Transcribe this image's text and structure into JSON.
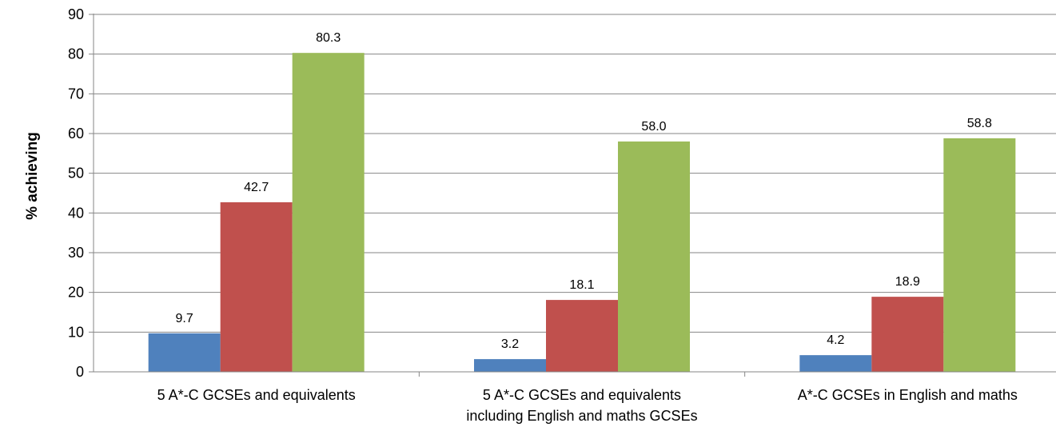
{
  "chart_data": {
    "type": "bar",
    "ylabel": "% achieving",
    "ylim": [
      0,
      90
    ],
    "ytick_step": 10,
    "grid": true,
    "categories": [
      [
        "5 A*-C GCSEs and equivalents"
      ],
      [
        "5 A*-C GCSEs and equivalents",
        "including English and maths GCSEs"
      ],
      [
        "A*-C GCSEs in English and maths"
      ]
    ],
    "series": [
      {
        "color": "#4f81bd",
        "values": [
          9.7,
          3.2,
          4.2
        ],
        "labels": [
          "9.7",
          "3.2",
          "4.2"
        ]
      },
      {
        "color": "#c0504d",
        "values": [
          42.7,
          18.1,
          18.9
        ],
        "labels": [
          "42.7",
          "18.1",
          "18.9"
        ]
      },
      {
        "color": "#9bbb59",
        "values": [
          80.3,
          58.0,
          58.8
        ],
        "labels": [
          "80.3",
          "58.0",
          "58.8"
        ]
      }
    ]
  }
}
